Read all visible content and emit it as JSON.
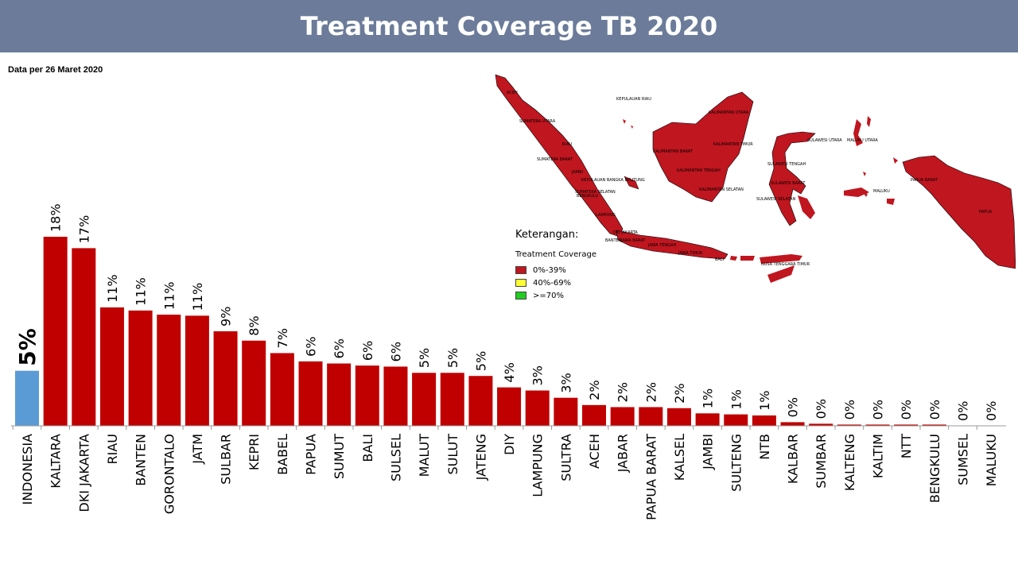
{
  "header": {
    "title": "Treatment Coverage TB 2020"
  },
  "subtitle": "Data per 26 Maret 2020",
  "colors": {
    "header_bg": "#6b7b99",
    "bar_primary": "#c00000",
    "bar_highlight": "#5b9bd5",
    "map_fill": "#c0161f"
  },
  "chart_data": {
    "type": "bar",
    "title": "Treatment Coverage TB 2020",
    "categories": [
      "INDONESIA",
      "KALTARA",
      "DKI JAKARTA",
      "RIAU",
      "BANTEN",
      "GORONTALO",
      "JATM",
      "SULBAR",
      "KEPRI",
      "BABEL",
      "PAPUA",
      "SUMUT",
      "BALI",
      "SULSEL",
      "MALUT",
      "SULUT",
      "JATENG",
      "DIY",
      "LAMPUNG",
      "SULTRA",
      "ACEH",
      "JABAR",
      "PAPUA BARAT",
      "KALSEL",
      "JAMBI",
      "SULTENG",
      "NTB",
      "KALBAR",
      "SUMBAR",
      "KALTENG",
      "KALTIM",
      "NTT",
      "BENGKULU",
      "SUMSEL",
      "MALUKU"
    ],
    "values": [
      5.3,
      18.2,
      17.1,
      11.4,
      11.1,
      10.7,
      10.6,
      9.1,
      8.2,
      7.0,
      6.2,
      6.0,
      5.8,
      5.7,
      5.1,
      5.1,
      4.8,
      3.7,
      3.4,
      2.7,
      2.0,
      1.8,
      1.8,
      1.7,
      1.2,
      1.1,
      1.0,
      0.35,
      0.2,
      0.12,
      0.12,
      0.12,
      0.12,
      0.0,
      0.0
    ],
    "data_labels": [
      "5%",
      "18%",
      "17%",
      "11%",
      "11%",
      "11%",
      "11%",
      "9%",
      "8%",
      "7%",
      "6%",
      "6%",
      "6%",
      "6%",
      "5%",
      "5%",
      "5%",
      "4%",
      "3%",
      "3%",
      "2%",
      "2%",
      "2%",
      "2%",
      "1%",
      "1%",
      "1%",
      "0%",
      "0%",
      "0%",
      "0%",
      "0%",
      "0%",
      "0%",
      "0%"
    ],
    "highlight_index": 0,
    "ylim": [
      0,
      20
    ],
    "grid": false,
    "legend": "none"
  },
  "map": {
    "legend": {
      "title": "Keterangan:",
      "subtitle": "Treatment Coverage",
      "items": [
        {
          "label": "0%-39%",
          "color": "#c0161f"
        },
        {
          "label": "40%-69%",
          "color": "#ffff33"
        },
        {
          "label": ">=70%",
          "color": "#22cc22"
        }
      ]
    },
    "region_labels": [
      "ACEH",
      "KEPULAUAN RIAU",
      "SUMATERA UTARA",
      "KALIMANTAN UTARA",
      "RIAU",
      "KALIMANTAN BARAT",
      "KALIMANTAN TIMUR",
      "SULAWESI UTARA",
      "MALUKU UTARA",
      "SUMATERA BARAT",
      "SULAWESI TENGAH",
      "JAMBI",
      "KALIMANTAN TENGAH",
      "PAPUA BARAT",
      "KEPULAUAN BANGKA BELITUNG",
      "SULAWESI BARAT",
      "SUMATERA SELATAN",
      "KALIMANTAN SELATAN",
      "MALUKU",
      "BENGKULU",
      "SULAWESI SELATAN",
      "PAPUA",
      "LAMPUNG",
      "DKI JAKARTA",
      "BANTEN",
      "JAWA BARAT",
      "JAWA TENGAH",
      "JAWA TIMUR",
      "BALI",
      "NUSA TENGGARA TIMUR"
    ]
  }
}
